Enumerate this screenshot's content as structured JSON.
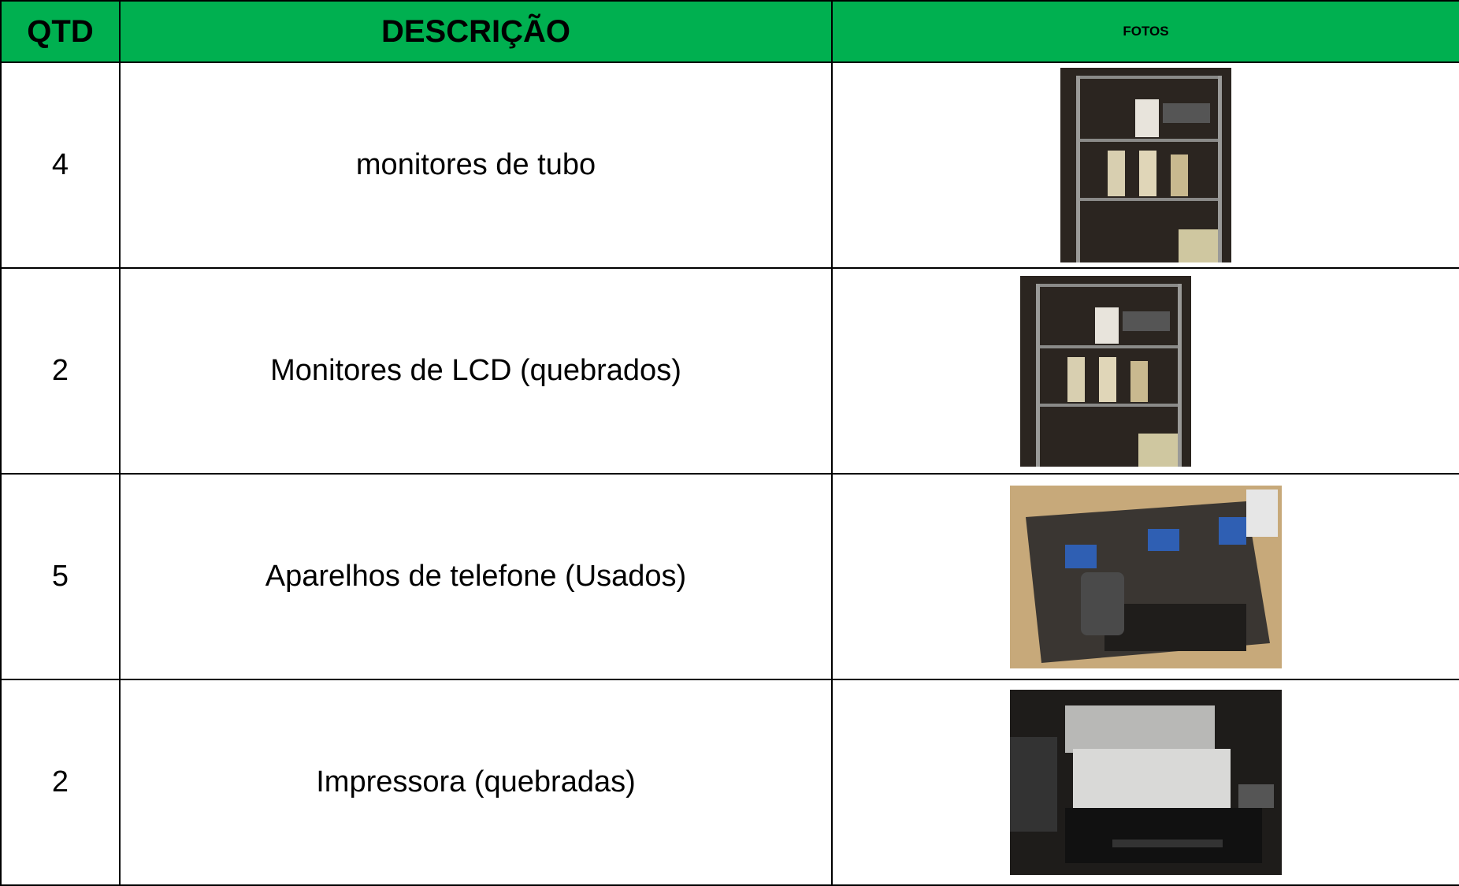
{
  "table": {
    "header": [
      "QTD",
      "DESCRIÇÃO",
      "FOTOS"
    ],
    "rows": [
      [
        "4",
        "monitores de tubo"
      ],
      [
        "2",
        "Monitores de LCD (quebrados)"
      ],
      [
        "5",
        "Aparelhos de telefone (Usados)"
      ],
      [
        "2",
        "Impressora (quebradas)"
      ]
    ]
  }
}
